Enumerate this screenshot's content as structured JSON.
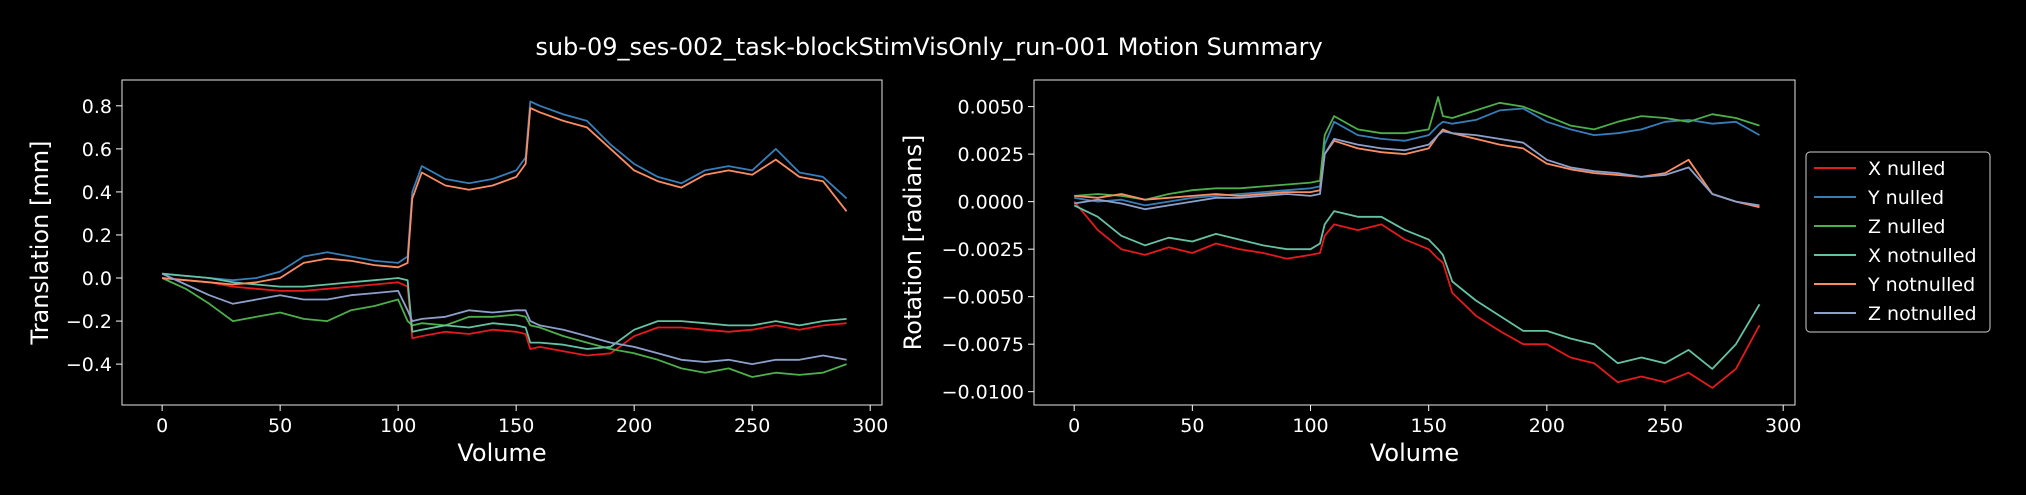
{
  "figure": {
    "title": "sub-09_ses-002_task-blockStimVisOnly_run-001 Motion Summary"
  },
  "legend": {
    "placement": "right, outside plots",
    "entries": [
      "X nulled",
      "Y nulled",
      "Z nulled",
      "X notnulled",
      "Y notnulled",
      "Z notnulled"
    ]
  },
  "colors": {
    "background": "#000000",
    "X nulled": "#e41a1c",
    "Y nulled": "#377eb8",
    "Z nulled": "#4daf4a",
    "X notnulled": "#66c2a5",
    "Y notnulled": "#fc8d62",
    "Z notnulled": "#8da0cb"
  },
  "chart_data": [
    {
      "type": "line",
      "title": "",
      "xlabel": "Volume",
      "ylabel": "Translation [mm]",
      "xlim": [
        -17,
        305
      ],
      "ylim": [
        -0.59,
        0.92
      ],
      "xticks": [
        0,
        50,
        100,
        150,
        200,
        250,
        300
      ],
      "yticks": [
        -0.4,
        -0.2,
        0.0,
        0.2,
        0.4,
        0.6,
        0.8
      ],
      "ytick_labels": [
        "−0.4",
        "−0.2",
        "0.0",
        "0.2",
        "0.4",
        "0.6",
        "0.8"
      ],
      "grid": false,
      "series": [
        {
          "name": "X nulled",
          "x": [
            0,
            10,
            20,
            30,
            40,
            50,
            60,
            70,
            80,
            90,
            100,
            104,
            106,
            110,
            120,
            130,
            140,
            150,
            154,
            156,
            160,
            170,
            180,
            190,
            200,
            210,
            220,
            230,
            240,
            250,
            260,
            270,
            280,
            290
          ],
          "y": [
            0.0,
            -0.01,
            -0.02,
            -0.04,
            -0.05,
            -0.06,
            -0.06,
            -0.05,
            -0.04,
            -0.03,
            -0.02,
            -0.04,
            -0.28,
            -0.27,
            -0.25,
            -0.26,
            -0.24,
            -0.25,
            -0.26,
            -0.33,
            -0.32,
            -0.34,
            -0.36,
            -0.35,
            -0.27,
            -0.23,
            -0.23,
            -0.24,
            -0.25,
            -0.24,
            -0.22,
            -0.24,
            -0.22,
            -0.21
          ]
        },
        {
          "name": "Y nulled",
          "x": [
            0,
            10,
            20,
            30,
            40,
            50,
            60,
            70,
            80,
            90,
            100,
            104,
            106,
            110,
            120,
            130,
            140,
            150,
            154,
            156,
            160,
            170,
            180,
            190,
            200,
            210,
            220,
            230,
            240,
            250,
            260,
            270,
            280,
            290
          ],
          "y": [
            0.02,
            0.01,
            0.0,
            -0.01,
            0.0,
            0.03,
            0.1,
            0.12,
            0.1,
            0.08,
            0.07,
            0.1,
            0.4,
            0.52,
            0.46,
            0.44,
            0.46,
            0.5,
            0.56,
            0.82,
            0.8,
            0.76,
            0.73,
            0.62,
            0.53,
            0.47,
            0.44,
            0.5,
            0.52,
            0.5,
            0.6,
            0.49,
            0.47,
            0.37
          ]
        },
        {
          "name": "Z nulled",
          "x": [
            0,
            10,
            20,
            30,
            40,
            50,
            60,
            70,
            80,
            90,
            100,
            104,
            106,
            110,
            120,
            130,
            140,
            150,
            154,
            156,
            160,
            170,
            180,
            190,
            200,
            210,
            220,
            230,
            240,
            250,
            260,
            270,
            280,
            290
          ],
          "y": [
            0.0,
            -0.05,
            -0.12,
            -0.2,
            -0.18,
            -0.16,
            -0.19,
            -0.2,
            -0.15,
            -0.13,
            -0.1,
            -0.2,
            -0.22,
            -0.21,
            -0.22,
            -0.18,
            -0.18,
            -0.17,
            -0.18,
            -0.22,
            -0.23,
            -0.27,
            -0.3,
            -0.33,
            -0.35,
            -0.38,
            -0.42,
            -0.44,
            -0.42,
            -0.46,
            -0.44,
            -0.45,
            -0.44,
            -0.4
          ]
        },
        {
          "name": "X notnulled",
          "x": [
            0,
            10,
            20,
            30,
            40,
            50,
            60,
            70,
            80,
            90,
            100,
            104,
            106,
            110,
            120,
            130,
            140,
            150,
            154,
            156,
            160,
            170,
            180,
            190,
            200,
            210,
            220,
            230,
            240,
            250,
            260,
            270,
            280,
            290
          ],
          "y": [
            0.02,
            0.01,
            0.0,
            -0.02,
            -0.03,
            -0.04,
            -0.04,
            -0.03,
            -0.02,
            -0.01,
            0.0,
            -0.01,
            -0.25,
            -0.24,
            -0.22,
            -0.23,
            -0.21,
            -0.22,
            -0.23,
            -0.3,
            -0.3,
            -0.31,
            -0.33,
            -0.32,
            -0.24,
            -0.2,
            -0.2,
            -0.21,
            -0.22,
            -0.22,
            -0.2,
            -0.22,
            -0.2,
            -0.19
          ]
        },
        {
          "name": "Y notnulled",
          "x": [
            0,
            10,
            20,
            30,
            40,
            50,
            60,
            70,
            80,
            90,
            100,
            104,
            106,
            110,
            120,
            130,
            140,
            150,
            154,
            156,
            160,
            170,
            180,
            190,
            200,
            210,
            220,
            230,
            240,
            250,
            260,
            270,
            280,
            290
          ],
          "y": [
            0.0,
            -0.01,
            -0.02,
            -0.03,
            -0.02,
            0.0,
            0.07,
            0.09,
            0.08,
            0.06,
            0.05,
            0.07,
            0.37,
            0.49,
            0.43,
            0.41,
            0.43,
            0.47,
            0.53,
            0.79,
            0.77,
            0.73,
            0.7,
            0.6,
            0.5,
            0.45,
            0.42,
            0.48,
            0.5,
            0.48,
            0.55,
            0.47,
            0.45,
            0.31
          ]
        },
        {
          "name": "Z notnulled",
          "x": [
            0,
            10,
            20,
            30,
            40,
            50,
            60,
            70,
            80,
            90,
            100,
            104,
            106,
            110,
            120,
            130,
            140,
            150,
            154,
            156,
            160,
            170,
            180,
            190,
            200,
            210,
            220,
            230,
            240,
            250,
            260,
            270,
            280,
            290
          ],
          "y": [
            0.02,
            -0.03,
            -0.08,
            -0.12,
            -0.1,
            -0.08,
            -0.1,
            -0.1,
            -0.08,
            -0.07,
            -0.06,
            -0.15,
            -0.2,
            -0.19,
            -0.18,
            -0.15,
            -0.16,
            -0.15,
            -0.15,
            -0.2,
            -0.22,
            -0.24,
            -0.27,
            -0.3,
            -0.32,
            -0.35,
            -0.38,
            -0.39,
            -0.38,
            -0.4,
            -0.38,
            -0.38,
            -0.36,
            -0.38
          ]
        }
      ]
    },
    {
      "type": "line",
      "title": "",
      "xlabel": "Volume",
      "ylabel": "Rotation [radians]",
      "xlim": [
        -17,
        305
      ],
      "ylim": [
        -0.0107,
        0.0064
      ],
      "xticks": [
        0,
        50,
        100,
        150,
        200,
        250,
        300
      ],
      "yticks": [
        -0.01,
        -0.0075,
        -0.005,
        -0.0025,
        0.0,
        0.0025,
        0.005
      ],
      "ytick_labels": [
        "−0.0100",
        "−0.0075",
        "−0.0050",
        "−0.0025",
        "0.0000",
        "0.0025",
        "0.0050"
      ],
      "grid": false,
      "series": [
        {
          "name": "X nulled",
          "x": [
            0,
            10,
            20,
            30,
            40,
            50,
            60,
            70,
            80,
            90,
            100,
            104,
            106,
            110,
            120,
            130,
            140,
            150,
            154,
            156,
            160,
            170,
            180,
            190,
            200,
            210,
            220,
            230,
            240,
            250,
            260,
            270,
            280,
            290
          ],
          "y": [
            0.0,
            -0.0015,
            -0.0025,
            -0.0028,
            -0.0024,
            -0.0027,
            -0.0022,
            -0.0025,
            -0.0027,
            -0.003,
            -0.0028,
            -0.0027,
            -0.0018,
            -0.0012,
            -0.0015,
            -0.0012,
            -0.002,
            -0.0025,
            -0.003,
            -0.0032,
            -0.0048,
            -0.006,
            -0.0068,
            -0.0075,
            -0.0075,
            -0.0082,
            -0.0085,
            -0.0095,
            -0.0092,
            -0.0095,
            -0.009,
            -0.0098,
            -0.0088,
            -0.0065
          ]
        },
        {
          "name": "Y nulled",
          "x": [
            0,
            10,
            20,
            30,
            40,
            50,
            60,
            70,
            80,
            90,
            100,
            104,
            106,
            110,
            120,
            130,
            140,
            150,
            154,
            156,
            160,
            170,
            180,
            190,
            200,
            210,
            220,
            230,
            240,
            250,
            260,
            270,
            280,
            290
          ],
          "y": [
            0.0002,
            0.0,
            0.0001,
            -0.0002,
            0.0,
            0.0002,
            0.0003,
            0.0004,
            0.0005,
            0.0006,
            0.0007,
            0.0008,
            0.003,
            0.0042,
            0.0035,
            0.0033,
            0.0032,
            0.0035,
            0.004,
            0.0042,
            0.0041,
            0.0043,
            0.0048,
            0.0049,
            0.0042,
            0.0038,
            0.0035,
            0.0036,
            0.0038,
            0.0042,
            0.0043,
            0.0041,
            0.0042,
            0.0035
          ]
        },
        {
          "name": "Z nulled",
          "x": [
            0,
            10,
            20,
            30,
            40,
            50,
            60,
            70,
            80,
            90,
            100,
            104,
            106,
            110,
            120,
            130,
            140,
            150,
            154,
            156,
            160,
            170,
            180,
            190,
            200,
            210,
            220,
            230,
            240,
            250,
            260,
            270,
            280,
            290
          ],
          "y": [
            0.0003,
            0.0004,
            0.0003,
            0.0001,
            0.0004,
            0.0006,
            0.0007,
            0.0007,
            0.0008,
            0.0009,
            0.001,
            0.0011,
            0.0035,
            0.0045,
            0.0038,
            0.0036,
            0.0036,
            0.0038,
            0.0055,
            0.0045,
            0.0044,
            0.0048,
            0.0052,
            0.005,
            0.0045,
            0.004,
            0.0038,
            0.0042,
            0.0045,
            0.0044,
            0.0042,
            0.0046,
            0.0044,
            0.004
          ]
        },
        {
          "name": "X notnulled",
          "x": [
            0,
            10,
            20,
            30,
            40,
            50,
            60,
            70,
            80,
            90,
            100,
            104,
            106,
            110,
            120,
            130,
            140,
            150,
            154,
            156,
            160,
            170,
            180,
            190,
            200,
            210,
            220,
            230,
            240,
            250,
            260,
            270,
            280,
            290
          ],
          "y": [
            -0.0002,
            -0.0008,
            -0.0018,
            -0.0023,
            -0.0019,
            -0.0021,
            -0.0017,
            -0.002,
            -0.0023,
            -0.0025,
            -0.0025,
            -0.0022,
            -0.0012,
            -0.0005,
            -0.0008,
            -0.0008,
            -0.0015,
            -0.002,
            -0.0025,
            -0.0028,
            -0.0042,
            -0.0052,
            -0.006,
            -0.0068,
            -0.0068,
            -0.0072,
            -0.0075,
            -0.0085,
            -0.0082,
            -0.0085,
            -0.0078,
            -0.0088,
            -0.0075,
            -0.0054
          ]
        },
        {
          "name": "Y notnulled",
          "x": [
            0,
            10,
            20,
            30,
            40,
            50,
            60,
            70,
            80,
            90,
            100,
            104,
            106,
            110,
            120,
            130,
            140,
            150,
            154,
            156,
            160,
            170,
            180,
            190,
            200,
            210,
            220,
            230,
            240,
            250,
            260,
            270,
            280,
            290
          ],
          "y": [
            0.0003,
            0.0002,
            0.0004,
            0.0001,
            0.0002,
            0.0003,
            0.0004,
            0.0003,
            0.0004,
            0.0005,
            0.0005,
            0.0006,
            0.0025,
            0.0032,
            0.0028,
            0.0026,
            0.0025,
            0.0028,
            0.0035,
            0.0038,
            0.0036,
            0.0033,
            0.003,
            0.0028,
            0.002,
            0.0017,
            0.0015,
            0.0014,
            0.0013,
            0.0015,
            0.0022,
            0.0004,
            0.0,
            -0.0003
          ]
        },
        {
          "name": "Z notnulled",
          "x": [
            0,
            10,
            20,
            30,
            40,
            50,
            60,
            70,
            80,
            90,
            100,
            104,
            106,
            110,
            120,
            130,
            140,
            150,
            154,
            156,
            160,
            170,
            180,
            190,
            200,
            210,
            220,
            230,
            240,
            250,
            260,
            270,
            280,
            290
          ],
          "y": [
            -0.0001,
            0.0001,
            -0.0001,
            -0.0004,
            -0.0002,
            0.0,
            0.0002,
            0.0002,
            0.0003,
            0.0004,
            0.0003,
            0.0004,
            0.0025,
            0.0033,
            0.003,
            0.0028,
            0.0027,
            0.003,
            0.0035,
            0.0037,
            0.0036,
            0.0035,
            0.0033,
            0.0031,
            0.0022,
            0.0018,
            0.0016,
            0.0015,
            0.0013,
            0.0014,
            0.0018,
            0.0004,
            0.0,
            -0.0002
          ]
        }
      ]
    }
  ]
}
